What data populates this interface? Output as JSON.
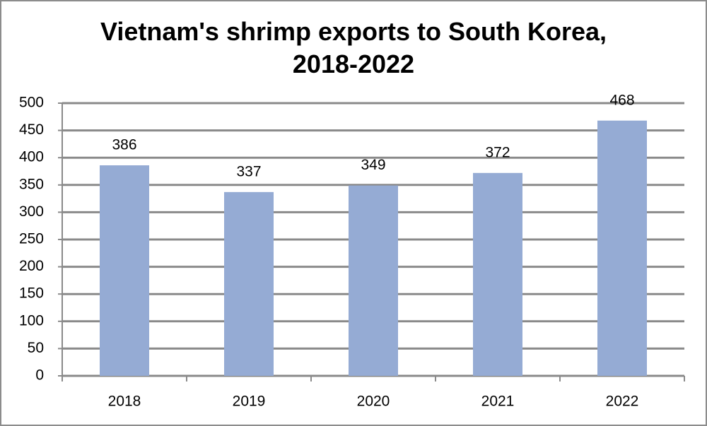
{
  "chart_data": {
    "type": "bar",
    "title": "Vietnam's shrimp exports to South Korea, 2018-2022",
    "categories": [
      "2018",
      "2019",
      "2020",
      "2021",
      "2022"
    ],
    "values": [
      386,
      337,
      349,
      372,
      468
    ],
    "color": "#95abd4",
    "ylim": [
      0,
      500
    ],
    "yticks": [
      0,
      50,
      100,
      150,
      200,
      250,
      300,
      350,
      400,
      450,
      500
    ],
    "grid": true
  }
}
